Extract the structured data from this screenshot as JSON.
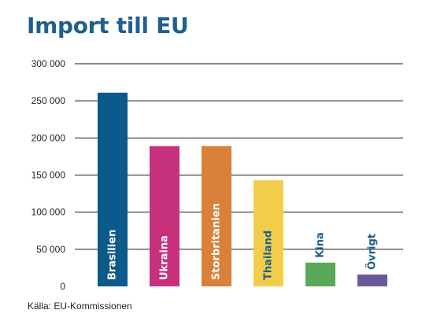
{
  "chart_data": {
    "type": "bar",
    "title": "Import till EU",
    "categories": [
      "Brasilien",
      "Ukraina",
      "Storbritanien",
      "Thailand",
      "Kina",
      "Övrigt"
    ],
    "values": [
      261000,
      189000,
      189000,
      143000,
      32000,
      16000
    ],
    "colors": [
      "#0b5a8a",
      "#c7307a",
      "#d9803a",
      "#f2cd4a",
      "#58a858",
      "#6b5a9a"
    ],
    "label_colors": [
      "#ffffff",
      "#ffffff",
      "#ffffff",
      "#1f5f8f",
      "#1f5f8f",
      "#1f5f8f"
    ],
    "y_ticks": [
      0,
      50000,
      100000,
      150000,
      200000,
      250000,
      300000
    ],
    "y_tick_labels": [
      "0",
      "50 000",
      "100 000",
      "150 000",
      "200 000",
      "250 000",
      "300 000"
    ],
    "ylim": [
      0,
      300000
    ],
    "grid": true,
    "legend": "none",
    "source": "Källa: EU-Kommissionen"
  }
}
